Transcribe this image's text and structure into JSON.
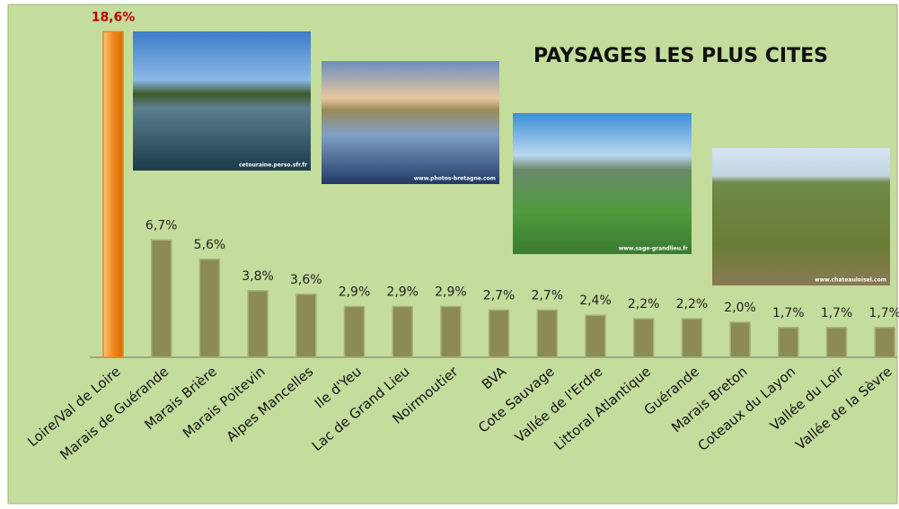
{
  "chart_data": {
    "type": "bar",
    "title": "PAYSAGES LES PLUS CITES",
    "categories": [
      "Loire/Val de Loire",
      "Marais de Guérande",
      "Marais Brière",
      "Marais Poitevin",
      "Alpes Mancelles",
      "Ile d'Yeu",
      "Lac de Grand Lieu",
      "Noirmoutier",
      "BVA",
      "Cote Sauvage",
      "Vallée de l'Erdre",
      "Littoral Atlantique",
      "Guérande",
      "Marais Breton",
      "Coteaux du Layon",
      "Vallée du Loir",
      "Vallée de la Sèvre"
    ],
    "values": [
      18.6,
      6.7,
      5.6,
      3.8,
      3.6,
      2.9,
      2.9,
      2.9,
      2.7,
      2.7,
      2.4,
      2.2,
      2.2,
      2.0,
      1.7,
      1.7,
      1.7
    ],
    "value_labels": [
      "18,6%",
      "6,7%",
      "5,6%",
      "3,8%",
      "3,6%",
      "2,9%",
      "2,9%",
      "2,9%",
      "2,7%",
      "2,7%",
      "2,4%",
      "2,2%",
      "2,2%",
      "2,0%",
      "1,7%",
      "1,7%",
      "1,7%"
    ],
    "colors": [
      "#f0821e",
      "#8c8a55",
      "#8c8a55",
      "#8c8a55",
      "#8c8a55",
      "#8c8a55",
      "#8c8a55",
      "#8c8a55",
      "#8c8a55",
      "#8c8a55",
      "#8c8a55",
      "#8c8a55",
      "#8c8a55",
      "#8c8a55",
      "#8c8a55",
      "#8c8a55",
      "#8c8a55"
    ],
    "annotations": [
      "cetouraine.perso.sfr.fr",
      "www.photos-bretagne.com",
      "www.sage-grandlieu.fr",
      "www.chateauloisel.com"
    ]
  }
}
